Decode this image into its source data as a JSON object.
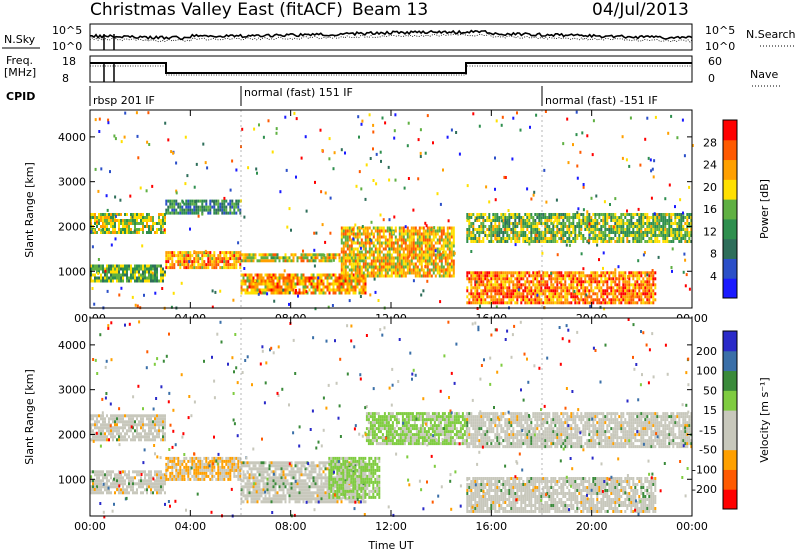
{
  "header": {
    "title": "Christmas Valley East (fitACF)",
    "beam": "Beam 13",
    "date": "04/Jul/2013"
  },
  "panels": {
    "nsky": {
      "label": "N.Sky",
      "tick_top": "10^5",
      "tick_bottom": "10^0"
    },
    "nsearch": {
      "label": "N.Search",
      "tick_top": "10^5",
      "tick_bottom": "10^0"
    },
    "freq": {
      "label1": "Freq.",
      "label2": "[MHz]",
      "tick_top": "18",
      "tick_bottom": "8"
    },
    "nave": {
      "label": "Nave",
      "tick_top": "60",
      "tick_bottom": "0"
    },
    "cpid": {
      "label": "CPID",
      "segments": [
        {
          "start_hour": 0,
          "text": "rbsp 201 IF"
        },
        {
          "start_hour": 6,
          "text": "normal (fast) 151 IF"
        },
        {
          "start_hour": 18,
          "text": "normal (fast) -151 IF"
        }
      ]
    }
  },
  "colors": {
    "power": [
      "#1a1aff",
      "#2b4fc8",
      "#2e6e5a",
      "#2e8f4e",
      "#5fb042",
      "#ffe000",
      "#ffa000",
      "#ff5a00",
      "#ff0000"
    ],
    "velocity": [
      "#ff0000",
      "#ff5a00",
      "#ffa000",
      "#c8c8bc",
      "#c8c8bc",
      "#7fcc40",
      "#3a8a3a",
      "#3a6fa8",
      "#2a2ac8"
    ]
  },
  "chart_data": [
    {
      "type": "heatmap",
      "name": "power",
      "ylabel": "Slant Range [km]",
      "xlabel": "",
      "xlim": [
        0,
        24
      ],
      "ylim": [
        180,
        4600
      ],
      "yticks": [
        1000,
        2000,
        3000,
        4000
      ],
      "xticks": [
        "00:00",
        "04:00",
        "08:00",
        "12:00",
        "16:00",
        "20:00",
        "00:00"
      ],
      "colorbar": {
        "label": "Power [dB]",
        "ticks": [
          4,
          8,
          12,
          16,
          20,
          24,
          28
        ],
        "range": [
          0,
          32
        ]
      },
      "bands": [
        {
          "x": [
            0.0,
            3.0
          ],
          "y": [
            1850,
            2300
          ],
          "value": 18
        },
        {
          "x": [
            0.0,
            3.0
          ],
          "y": [
            750,
            1150
          ],
          "value": 14
        },
        {
          "x": [
            3.0,
            6.0
          ],
          "y": [
            1050,
            1450
          ],
          "value": 24
        },
        {
          "x": [
            3.0,
            6.0
          ],
          "y": [
            2300,
            2600
          ],
          "value": 10
        },
        {
          "x": [
            6.0,
            11.0
          ],
          "y": [
            1200,
            1400
          ],
          "value": 20
        },
        {
          "x": [
            6.0,
            11.0
          ],
          "y": [
            500,
            950
          ],
          "value": 24
        },
        {
          "x": [
            10.0,
            14.5
          ],
          "y": [
            900,
            2000
          ],
          "value": 22
        },
        {
          "x": [
            15.0,
            24.0
          ],
          "y": [
            1650,
            2300
          ],
          "value": 16
        },
        {
          "x": [
            15.0,
            22.5
          ],
          "y": [
            300,
            1000
          ],
          "value": 26
        }
      ]
    },
    {
      "type": "heatmap",
      "name": "velocity",
      "ylabel": "Slant Range [km]",
      "xlabel": "Time UT",
      "xlim": [
        0,
        24
      ],
      "ylim": [
        180,
        4600
      ],
      "yticks": [
        1000,
        2000,
        3000,
        4000
      ],
      "xticks": [
        "00:00",
        "04:00",
        "08:00",
        "12:00",
        "16:00",
        "20:00",
        "00:00"
      ],
      "colorbar": {
        "label": "Velocity [m s⁻¹]",
        "ticks": [
          200,
          100,
          50,
          15,
          -15,
          -50,
          -100,
          -200
        ]
      },
      "bands": [
        {
          "x": [
            0.0,
            3.0
          ],
          "y": [
            1850,
            2450
          ],
          "value": 0
        },
        {
          "x": [
            0.0,
            3.0
          ],
          "y": [
            700,
            1200
          ],
          "value": 0
        },
        {
          "x": [
            3.0,
            6.0
          ],
          "y": [
            1000,
            1500
          ],
          "value": -20
        },
        {
          "x": [
            6.0,
            11.0
          ],
          "y": [
            500,
            1400
          ],
          "value": 0
        },
        {
          "x": [
            9.5,
            11.5
          ],
          "y": [
            600,
            1500
          ],
          "value": 40
        },
        {
          "x": [
            11.0,
            15.0
          ],
          "y": [
            1800,
            2500
          ],
          "value": 30
        },
        {
          "x": [
            15.0,
            24.0
          ],
          "y": [
            1700,
            2500
          ],
          "value": 0
        },
        {
          "x": [
            15.0,
            22.5
          ],
          "y": [
            300,
            1050
          ],
          "value": 0
        }
      ]
    }
  ]
}
